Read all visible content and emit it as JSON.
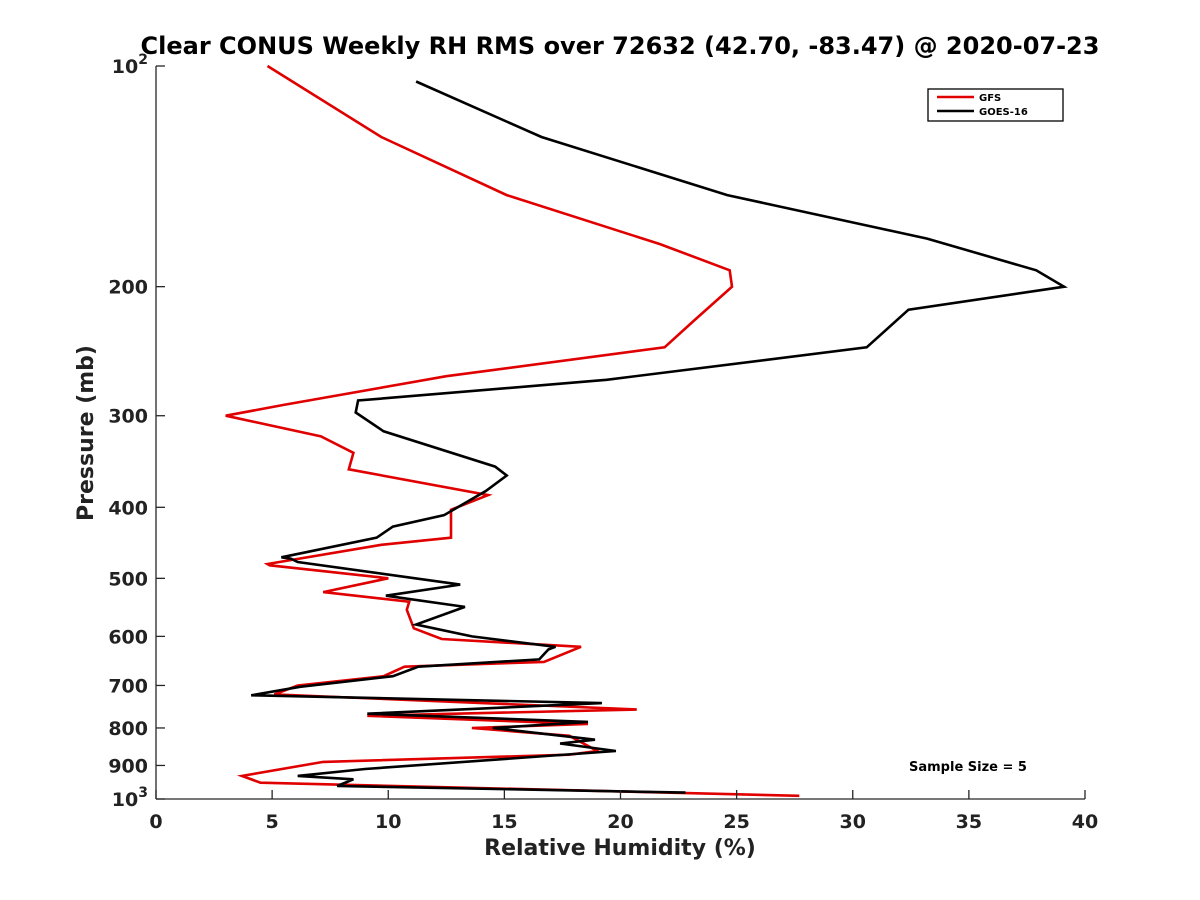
{
  "chart_data": {
    "type": "line",
    "title": "Clear CONUS Weekly RH RMS over 72632 (42.70, -83.47) @ 2020-07-23",
    "xlabel": "Relative Humidity (%)",
    "ylabel": "Pressure (mb)",
    "xlim": [
      0,
      40
    ],
    "ylim": [
      100,
      1000
    ],
    "y_scale": "log",
    "y_reversed": true,
    "x_ticks": [
      0,
      5,
      10,
      15,
      20,
      25,
      30,
      35,
      40
    ],
    "x_tick_labels": [
      "0",
      "5",
      "10",
      "15",
      "20",
      "25",
      "30",
      "35",
      "40"
    ],
    "y_ticks": [
      100,
      200,
      300,
      400,
      500,
      600,
      700,
      800,
      900,
      1000
    ],
    "y_tick_labels": [
      {
        "base": "10",
        "exp": "2"
      },
      {
        "base": "200",
        "exp": ""
      },
      {
        "base": "300",
        "exp": ""
      },
      {
        "base": "400",
        "exp": ""
      },
      {
        "base": "500",
        "exp": ""
      },
      {
        "base": "600",
        "exp": ""
      },
      {
        "base": "700",
        "exp": ""
      },
      {
        "base": "800",
        "exp": ""
      },
      {
        "base": "900",
        "exp": ""
      },
      {
        "base": "10",
        "exp": "3"
      }
    ],
    "grid": false,
    "legend_position": "top-right",
    "annotation": "Sample Size = 5",
    "series": [
      {
        "name": "GFS",
        "color": "#e00000",
        "x": [
          4.8,
          9.7,
          15.1,
          21.7,
          24.7,
          24.8,
          23.2,
          21.9,
          12.5,
          5.5,
          3.0,
          7.1,
          8.5,
          8.3,
          14.3,
          12.7,
          12.7,
          9.7,
          4.8,
          4.9,
          10.0,
          7.2,
          10.9,
          10.8,
          11.1,
          12.3,
          18.3,
          16.7,
          10.7,
          9.8,
          6.1,
          5.1,
          20.7,
          9.1,
          18.6,
          13.6,
          17.8,
          19.0,
          17.8,
          7.2,
          3.7,
          4.5,
          27.7
        ],
        "y": [
          100,
          125,
          150,
          175,
          190,
          200,
          222,
          242,
          265,
          290,
          300,
          320,
          337,
          355,
          385,
          403,
          440,
          450,
          478,
          480,
          500,
          522,
          538,
          552,
          585,
          605,
          620,
          650,
          660,
          680,
          700,
          720,
          755,
          770,
          790,
          800,
          820,
          860,
          870,
          890,
          930,
          950,
          990
        ]
      },
      {
        "name": "GOES-16",
        "color": "#000000",
        "x": [
          11.2,
          16.6,
          24.6,
          33.2,
          37.9,
          39.1,
          32.4,
          30.6,
          19.4,
          8.7,
          8.6,
          9.8,
          14.6,
          15.1,
          14.2,
          12.4,
          10.2,
          9.5,
          5.4,
          5.8,
          6.1,
          13.1,
          9.9,
          13.3,
          11.2,
          13.6,
          17.2,
          16.9,
          16.5,
          11.3,
          10.2,
          6.2,
          4.1,
          19.2,
          9.1,
          18.6,
          14.5,
          18.9,
          17.4,
          19.8,
          9.0,
          6.1,
          8.5,
          7.8,
          22.8
        ],
        "y": [
          105,
          125,
          150,
          172,
          190,
          200,
          215,
          242,
          268,
          286,
          297,
          315,
          352,
          362,
          380,
          410,
          425,
          440,
          468,
          470,
          475,
          510,
          528,
          547,
          578,
          600,
          620,
          625,
          645,
          660,
          680,
          703,
          722,
          740,
          765,
          785,
          800,
          830,
          840,
          860,
          910,
          930,
          940,
          960,
          980
        ]
      }
    ]
  }
}
